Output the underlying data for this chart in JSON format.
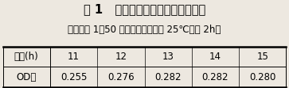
{
  "title": "表 1   硫酸铜处理时间对浸提的影响",
  "subtitle": "（料液比 1：50 丙酮乙醇混合液于 25℃浸提 2h）",
  "col_header": [
    "时间(h)",
    "11",
    "12",
    "13",
    "14",
    "15"
  ],
  "row_label": "OD值",
  "row_values": [
    "0.255",
    "0.276",
    "0.282",
    "0.282",
    "0.280"
  ],
  "background_color": "#ede8e0",
  "title_fontsize": 10.5,
  "subtitle_fontsize": 8.5,
  "table_fontsize": 8.5
}
